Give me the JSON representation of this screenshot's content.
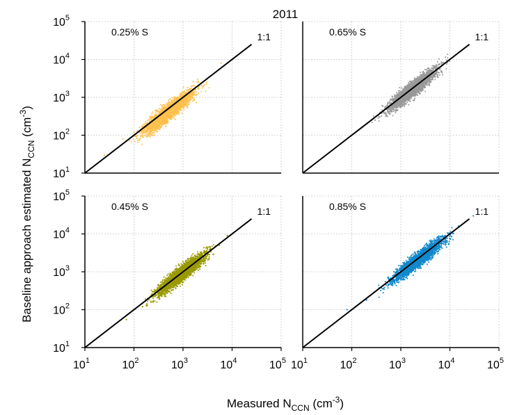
{
  "figure_title": "2011",
  "ylabel": {
    "main": "Baseline approach estimated N",
    "sub": "CCN",
    "unit_open": " (cm",
    "unit_sup": "-3",
    "unit_close": ")"
  },
  "xlabel": {
    "main": "Measured N",
    "sub": "CCN",
    "unit_open": " (cm",
    "unit_sup": "-3",
    "unit_close": ")"
  },
  "tick_labels": [
    {
      "base": "10",
      "exp": "1",
      "value": 10
    },
    {
      "base": "10",
      "exp": "2",
      "value": 100
    },
    {
      "base": "10",
      "exp": "3",
      "value": 1000
    },
    {
      "base": "10",
      "exp": "4",
      "value": 10000
    },
    {
      "base": "10",
      "exp": "5",
      "value": 100000
    }
  ],
  "chart_data": [
    {
      "type": "scatter",
      "panel": "top-left",
      "label": "0.25% S",
      "line_label": "1:1",
      "color": "#ffc04d",
      "xscale": "log",
      "yscale": "log",
      "xlim": [
        10,
        100000
      ],
      "ylim": [
        10,
        100000
      ],
      "grid": true,
      "x_range": [
        20,
        10000
      ],
      "y_range": [
        25,
        10000
      ],
      "center": [
        500,
        400
      ],
      "spread": 0.19,
      "n": 2600,
      "points": [
        [
          25,
          30
        ],
        [
          60,
          80
        ],
        [
          100,
          120
        ],
        [
          200,
          150
        ],
        [
          500,
          400
        ],
        [
          900,
          700
        ],
        [
          1500,
          1200
        ],
        [
          3000,
          2500
        ],
        [
          6000,
          8000
        ],
        [
          10000,
          10000
        ]
      ]
    },
    {
      "type": "scatter",
      "panel": "top-right",
      "label": "0.65% S",
      "line_label": "1:1",
      "color": "#999999",
      "xscale": "log",
      "yscale": "log",
      "xlim": [
        10,
        100000
      ],
      "ylim": [
        10,
        100000
      ],
      "grid": true,
      "x_range": [
        60,
        22000
      ],
      "y_range": [
        50,
        25000
      ],
      "center": [
        1800,
        1700
      ],
      "spread": 0.17,
      "n": 2600,
      "points": [
        [
          60,
          60
        ],
        [
          150,
          150
        ],
        [
          300,
          250
        ],
        [
          800,
          700
        ],
        [
          1800,
          1700
        ],
        [
          3000,
          3000
        ],
        [
          6000,
          6000
        ],
        [
          12000,
          12000
        ],
        [
          20000,
          20000
        ]
      ]
    },
    {
      "type": "scatter",
      "panel": "bottom-left",
      "label": "0.45% S",
      "line_label": "1:1",
      "color": "#999900",
      "xscale": "log",
      "yscale": "log",
      "xlim": [
        10,
        100000
      ],
      "ylim": [
        10,
        100000
      ],
      "grid": true,
      "x_range": [
        70,
        20000
      ],
      "y_range": [
        50,
        22000
      ],
      "center": [
        900,
        850
      ],
      "spread": 0.17,
      "n": 2600,
      "points": [
        [
          70,
          55
        ],
        [
          150,
          120
        ],
        [
          300,
          300
        ],
        [
          600,
          500
        ],
        [
          900,
          850
        ],
        [
          1500,
          1500
        ],
        [
          3000,
          3000
        ],
        [
          8000,
          9000
        ],
        [
          20000,
          20000
        ]
      ]
    },
    {
      "type": "scatter",
      "panel": "bottom-right",
      "label": "0.85% S",
      "line_label": "1:1",
      "color": "#1188cc",
      "xscale": "log",
      "yscale": "log",
      "xlim": [
        10,
        100000
      ],
      "ylim": [
        10,
        100000
      ],
      "grid": true,
      "x_range": [
        80,
        30000
      ],
      "y_range": [
        80,
        30000
      ],
      "center": [
        2200,
        2000
      ],
      "spread": 0.16,
      "n": 2600,
      "points": [
        [
          80,
          100
        ],
        [
          200,
          180
        ],
        [
          500,
          450
        ],
        [
          1000,
          900
        ],
        [
          2200,
          2000
        ],
        [
          4000,
          4000
        ],
        [
          8000,
          9000
        ],
        [
          15000,
          16000
        ],
        [
          30000,
          30000
        ]
      ]
    }
  ]
}
